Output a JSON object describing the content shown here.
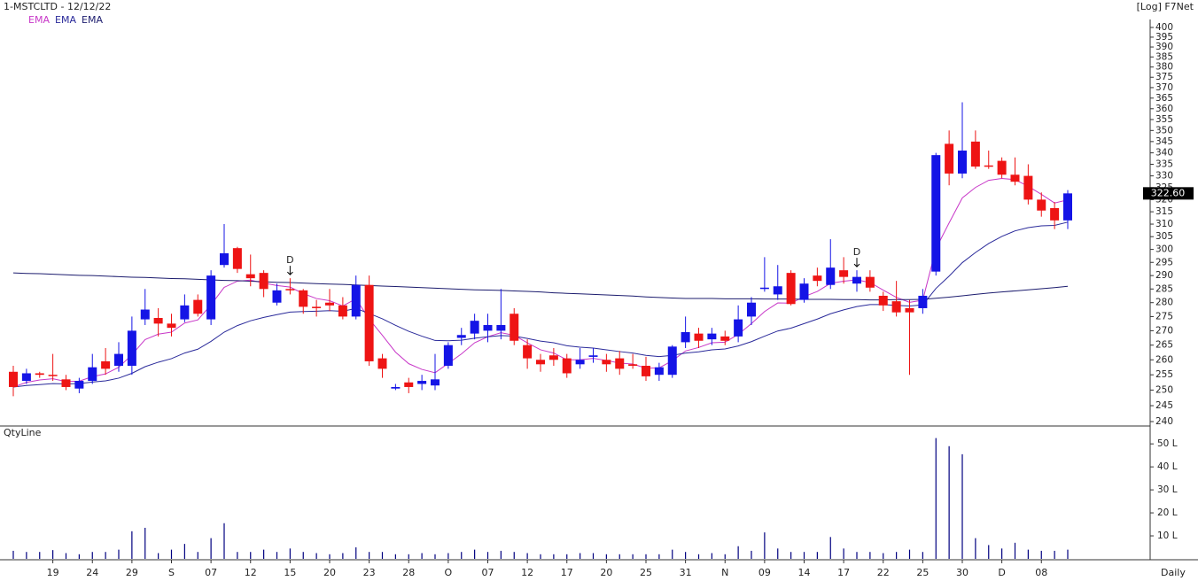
{
  "chart_data": {
    "type": "candlestick",
    "title": "1-MSTCLTD - 12/12/22",
    "scale_label": "[Log] F7Net",
    "log_scale": true,
    "grid": false,
    "up_color": "#1414e6",
    "down_color": "#ee1414",
    "categories": [
      null,
      null,
      null,
      "19",
      null,
      null,
      "24",
      null,
      null,
      "29",
      null,
      null,
      "S",
      null,
      null,
      "07",
      null,
      null,
      "12",
      null,
      null,
      "15",
      null,
      null,
      "20",
      null,
      null,
      "23",
      null,
      null,
      "28",
      null,
      null,
      "O",
      null,
      null,
      "07",
      null,
      null,
      "12",
      null,
      null,
      "17",
      null,
      null,
      "20",
      null,
      null,
      "25",
      null,
      null,
      "31",
      null,
      null,
      "N",
      null,
      null,
      "09",
      null,
      null,
      "14",
      null,
      null,
      "17",
      null,
      null,
      "22",
      null,
      null,
      "25",
      null,
      null,
      "30",
      null,
      null,
      "D",
      null,
      null,
      "08",
      null,
      null
    ],
    "open": [
      256,
      253,
      255.5,
      255,
      253.5,
      250.5,
      253,
      259.5,
      258,
      258,
      274,
      274.5,
      272.5,
      274,
      281,
      274,
      294,
      300.5,
      290.5,
      291,
      280,
      285,
      284.5,
      278.5,
      280,
      279,
      275,
      286.5,
      260.5,
      250.5,
      252.5,
      252,
      251.5,
      258,
      267.5,
      269,
      270,
      270,
      276,
      265,
      260,
      261.5,
      260.5,
      258.5,
      261,
      260,
      260.5,
      258.5,
      258,
      255,
      255,
      266,
      269,
      267,
      268,
      268,
      275,
      285,
      283,
      291,
      281,
      290,
      286.5,
      292,
      287,
      289.5,
      282.5,
      280.5,
      278,
      278,
      291.5,
      344,
      331,
      345,
      334.5,
      336.5,
      330.5,
      330,
      320,
      316.5,
      311.5
    ],
    "high": [
      258,
      257,
      256,
      262,
      255,
      254,
      262,
      264,
      266,
      275,
      285,
      278,
      276,
      283,
      283,
      292,
      310,
      301,
      298,
      292,
      287,
      289,
      285,
      281,
      285,
      282,
      290,
      290,
      262,
      252,
      254,
      255,
      262,
      266,
      271,
      276,
      276,
      285,
      278,
      267,
      262,
      264,
      262,
      264,
      264,
      262,
      263,
      262,
      261,
      259,
      265,
      275,
      271,
      271,
      270,
      279,
      282,
      297,
      294,
      292,
      289,
      293,
      304,
      297,
      292,
      292,
      284,
      288,
      281,
      285,
      340,
      350,
      363,
      350,
      341,
      338,
      338,
      335,
      323,
      319,
      324
    ],
    "low": [
      248,
      252,
      254,
      253,
      250,
      249,
      252,
      255,
      256,
      255,
      272,
      268,
      268,
      273,
      275,
      272,
      293,
      291,
      286,
      282,
      279,
      283,
      276,
      275,
      277,
      274,
      274,
      258,
      254,
      250,
      249,
      250,
      250,
      257,
      265,
      267,
      266,
      267,
      265,
      257,
      256,
      258,
      254,
      257,
      259,
      256,
      255,
      257,
      253,
      253,
      254,
      264,
      264,
      265,
      265,
      266,
      272,
      284,
      281,
      279,
      280,
      286,
      285,
      287,
      284,
      284,
      277,
      275,
      255,
      276,
      290,
      326,
      329,
      333,
      333,
      329,
      326,
      318,
      313,
      308,
      308
    ],
    "close": [
      251,
      255.5,
      255,
      254.6,
      251,
      253,
      257.5,
      257,
      262,
      270,
      277.5,
      272.5,
      271,
      279,
      276,
      290,
      298.5,
      292.5,
      289,
      285,
      284.5,
      284.5,
      278.5,
      278,
      279,
      275,
      286.5,
      259.5,
      257,
      251,
      251,
      253,
      253.5,
      265,
      268.5,
      273.5,
      272,
      272,
      266.5,
      260.5,
      258.5,
      260,
      255.5,
      260,
      261.5,
      258.5,
      257,
      258,
      254.5,
      257.5,
      264.5,
      269.5,
      266.5,
      269,
      266.5,
      274,
      280,
      285.5,
      286,
      279.5,
      287,
      288,
      293,
      289.5,
      289.5,
      285.5,
      279,
      276.5,
      276.5,
      282.5,
      339,
      331,
      341,
      334,
      334,
      330.5,
      327.5,
      320,
      315.5,
      311.5,
      322.6
    ],
    "series": [
      {
        "name": "EMA",
        "color": "#c838c8",
        "values": [
          251,
          252.5,
          253.3,
          253.7,
          252.8,
          252.9,
          254.4,
          255.3,
          257.5,
          261.7,
          266.9,
          268.8,
          269.5,
          272.7,
          273.8,
          279.2,
          285.6,
          287.9,
          288.3,
          287.2,
          286.3,
          285.7,
          283.3,
          281.5,
          280.7,
          278.8,
          281.4,
          274.1,
          268.4,
          262.6,
          258.7,
          256.8,
          255.7,
          258.8,
          262,
          265.8,
          267.9,
          269.3,
          268.4,
          265.8,
          263.4,
          262.3,
          260,
          260,
          260.5,
          259.8,
          258.9,
          258.6,
          257.2,
          257.3,
          259.7,
          263,
          264.2,
          265.8,
          266,
          268.7,
          272.5,
          276.8,
          279.9,
          279.8,
          282.2,
          284.1,
          287.1,
          287.9,
          288.4,
          287.4,
          284.6,
          281.9,
          280.1,
          280.9,
          300.3,
          310.5,
          320.7,
          325.1,
          328.1,
          328.9,
          328.4,
          325.6,
          322.2,
          318.6,
          319.9
        ]
      },
      {
        "name": "EMA",
        "color": "#2a2a9a",
        "values": [
          251,
          251.5,
          251.8,
          252.1,
          252,
          252.1,
          252.6,
          253,
          253.9,
          255.5,
          257.7,
          259.2,
          260.4,
          262.3,
          263.6,
          266.3,
          269.5,
          271.8,
          273.5,
          274.7,
          275.7,
          276.6,
          276.8,
          276.9,
          277.1,
          276.9,
          277.9,
          276.1,
          274.2,
          271.9,
          269.8,
          268.1,
          266.6,
          266.5,
          266.7,
          267.4,
          267.9,
          268.3,
          268.1,
          267.3,
          266.4,
          265.8,
          264.8,
          264.3,
          264,
          263.4,
          262.8,
          262.3,
          261.5,
          261.1,
          261.5,
          262.3,
          262.7,
          263.4,
          263.7,
          264.7,
          266.2,
          268.1,
          269.9,
          270.9,
          272.5,
          274.1,
          276,
          277.4,
          278.6,
          279.3,
          279.3,
          279,
          278.8,
          279.2,
          285.2,
          289.8,
          294.9,
          298.8,
          302.3,
          305.1,
          307.3,
          308.6,
          309.3,
          309.5,
          310.8
        ]
      },
      {
        "name": "EMA",
        "color": "#1c1c6e",
        "values": [
          291,
          290.8,
          290.7,
          290.5,
          290.3,
          290.1,
          290,
          289.8,
          289.6,
          289.4,
          289.3,
          289.1,
          288.9,
          288.8,
          288.6,
          288.4,
          288.2,
          288.1,
          287.9,
          287.7,
          287.5,
          287.4,
          287.2,
          287,
          286.8,
          286.7,
          286.5,
          286.3,
          286.1,
          285.9,
          285.7,
          285.5,
          285.3,
          285.1,
          284.9,
          284.7,
          284.6,
          284.5,
          284.3,
          284.1,
          283.9,
          283.6,
          283.4,
          283.2,
          283,
          282.8,
          282.6,
          282.4,
          282.1,
          281.9,
          281.7,
          281.5,
          281.5,
          281.5,
          281.4,
          281.4,
          281.4,
          281.3,
          281.3,
          281.3,
          281.2,
          281.2,
          281.2,
          281.1,
          281.1,
          281,
          281,
          281.1,
          281.1,
          281.2,
          281.6,
          282,
          282.5,
          283,
          283.5,
          283.9,
          284.3,
          284.7,
          285.1,
          285.5,
          286
        ]
      }
    ],
    "ylim": [
      240,
      400
    ],
    "yticks": [
      240,
      245,
      250,
      255,
      260,
      265,
      270,
      275,
      280,
      285,
      290,
      295,
      300,
      305,
      310,
      315,
      320,
      325,
      330,
      335,
      340,
      345,
      350,
      355,
      360,
      365,
      370,
      375,
      380,
      385,
      390,
      395,
      400
    ],
    "last_price": {
      "value": 322.6,
      "label": "322.60"
    },
    "annotations": [
      {
        "text": "D"
      },
      {
        "text": "D"
      }
    ],
    "frequency": "Daily",
    "volume": {
      "type": "bar",
      "title": "QtyLine",
      "color": "#000080",
      "values": [
        3.5,
        3,
        3,
        3.8,
        2.5,
        2,
        3,
        3,
        4,
        12,
        13.5,
        2.5,
        4,
        6.5,
        3,
        9,
        15.5,
        3,
        3,
        4,
        3,
        4.5,
        3,
        2.5,
        2,
        2.5,
        5,
        3,
        3,
        2,
        2,
        2.5,
        2,
        2.5,
        3,
        4,
        3,
        3.5,
        3,
        2.5,
        2,
        2,
        2,
        2.5,
        2.5,
        2,
        2,
        2,
        2,
        2,
        4,
        3,
        2,
        2.5,
        2,
        5.5,
        3.5,
        11.5,
        4.5,
        3,
        3,
        3,
        9.5,
        4.5,
        3,
        3,
        2.5,
        3,
        4,
        3,
        52.5,
        49,
        45.5,
        9,
        6,
        4.5,
        7,
        4,
        3.5,
        3.5,
        4
      ],
      "ylim": [
        0,
        57
      ],
      "yticks": [
        {
          "value": 10,
          "label": "10 L"
        },
        {
          "value": 20,
          "label": "20 L"
        },
        {
          "value": 30,
          "label": "30 L"
        },
        {
          "value": 40,
          "label": "40 L"
        },
        {
          "value": 50,
          "label": "50 L"
        }
      ]
    }
  }
}
